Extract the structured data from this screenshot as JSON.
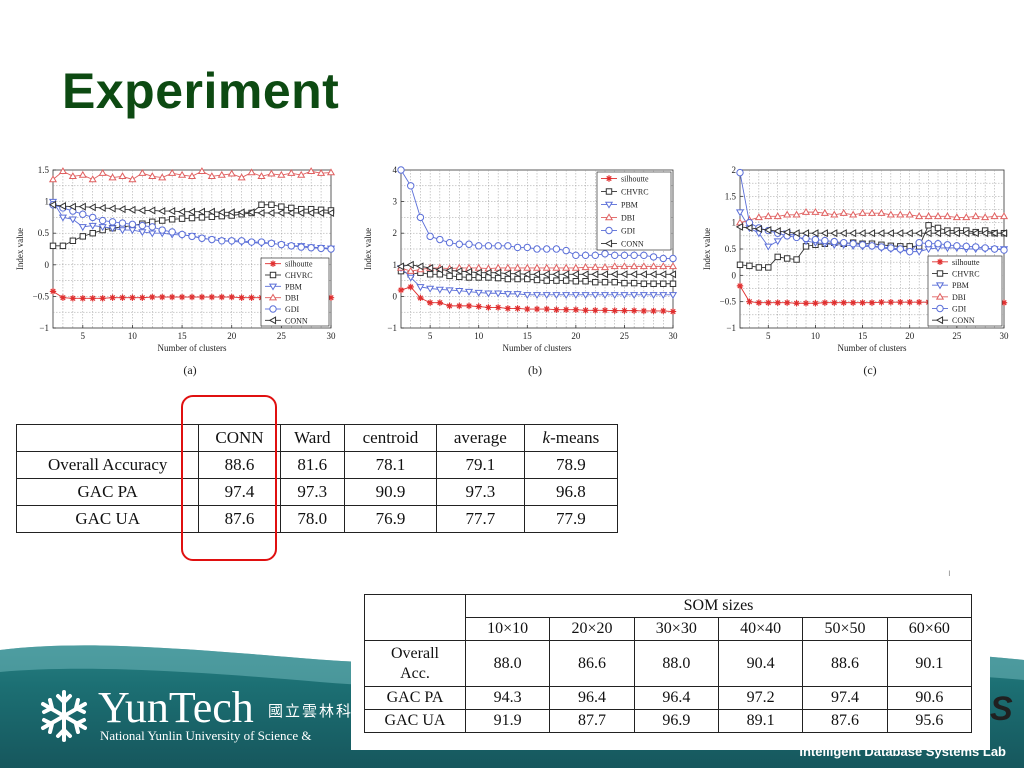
{
  "slide": {
    "title": "Experiment",
    "footer_text": "Intelligent Database Systems Lab",
    "logo": {
      "name": "YunTech",
      "chinese": "國立雲林科",
      "english": "National Yunlin University of Science &"
    },
    "right_glyph": "S"
  },
  "chart_data": [
    {
      "type": "line",
      "caption": "(a)",
      "xlabel": "Number of clusters",
      "ylabel": "Index value",
      "xlim": [
        2,
        30
      ],
      "ylim": [
        -1,
        1.5
      ],
      "xticks": [
        5,
        10,
        15,
        20,
        25,
        30
      ],
      "yticks": [
        -1,
        -0.5,
        0,
        0.5,
        1,
        1.5
      ],
      "ytick_labels": [
        "−1",
        "−0.5",
        "0",
        "0.5",
        "1",
        "1.5"
      ],
      "grid": true,
      "legend_position": "bottom-right",
      "x": [
        2,
        3,
        4,
        5,
        6,
        7,
        8,
        9,
        10,
        11,
        12,
        13,
        14,
        15,
        16,
        17,
        18,
        19,
        20,
        21,
        22,
        23,
        24,
        25,
        26,
        27,
        28,
        29,
        30
      ],
      "series": [
        {
          "name": "silhoutte",
          "color": "#e03030",
          "marker": "star",
          "values": [
            -0.42,
            -0.52,
            -0.53,
            -0.53,
            -0.53,
            -0.53,
            -0.52,
            -0.52,
            -0.52,
            -0.52,
            -0.51,
            -0.51,
            -0.51,
            -0.51,
            -0.51,
            -0.51,
            -0.51,
            -0.51,
            -0.51,
            -0.52,
            -0.52,
            -0.52,
            -0.52,
            -0.52,
            -0.52,
            -0.52,
            -0.52,
            -0.52,
            -0.52
          ]
        },
        {
          "name": "CHVRC",
          "color": "#333333",
          "marker": "square",
          "values": [
            0.3,
            0.3,
            0.38,
            0.45,
            0.5,
            0.55,
            0.58,
            0.6,
            0.62,
            0.65,
            0.68,
            0.7,
            0.72,
            0.73,
            0.74,
            0.75,
            0.76,
            0.77,
            0.78,
            0.8,
            0.82,
            0.95,
            0.95,
            0.92,
            0.9,
            0.88,
            0.88,
            0.87,
            0.86
          ]
        },
        {
          "name": "PBM",
          "color": "#5b6fd8",
          "marker": "tri-down",
          "values": [
            1.0,
            0.75,
            0.72,
            0.6,
            0.62,
            0.6,
            0.58,
            0.55,
            0.55,
            0.52,
            0.5,
            0.5,
            0.48,
            0.47,
            0.46,
            0.42,
            0.4,
            0.38,
            0.37,
            0.36,
            0.35,
            0.34,
            0.34,
            0.32,
            0.3,
            0.3,
            0.28,
            0.27,
            0.26
          ]
        },
        {
          "name": "DBI",
          "color": "#e06060",
          "marker": "tri-up",
          "values": [
            1.35,
            1.48,
            1.4,
            1.42,
            1.35,
            1.45,
            1.38,
            1.4,
            1.35,
            1.45,
            1.4,
            1.38,
            1.45,
            1.42,
            1.4,
            1.48,
            1.4,
            1.42,
            1.44,
            1.38,
            1.46,
            1.4,
            1.44,
            1.42,
            1.45,
            1.42,
            1.48,
            1.45,
            1.46
          ]
        },
        {
          "name": "GDI",
          "color": "#5b6fd8",
          "marker": "circle",
          "values": [
            0.95,
            0.9,
            0.85,
            0.8,
            0.75,
            0.7,
            0.68,
            0.66,
            0.64,
            0.62,
            0.6,
            0.55,
            0.52,
            0.48,
            0.45,
            0.42,
            0.4,
            0.38,
            0.38,
            0.38,
            0.36,
            0.36,
            0.34,
            0.32,
            0.3,
            0.28,
            0.27,
            0.26,
            0.25
          ]
        },
        {
          "name": "CONN",
          "color": "#333333",
          "marker": "tri-left",
          "values": [
            0.95,
            0.93,
            0.92,
            0.92,
            0.91,
            0.9,
            0.89,
            0.88,
            0.87,
            0.86,
            0.86,
            0.85,
            0.85,
            0.84,
            0.84,
            0.84,
            0.84,
            0.83,
            0.83,
            0.83,
            0.83,
            0.82,
            0.82,
            0.82,
            0.82,
            0.82,
            0.82,
            0.82,
            0.82
          ]
        }
      ]
    },
    {
      "type": "line",
      "caption": "(b)",
      "xlabel": "Number of clusters",
      "ylabel": "Index value",
      "xlim": [
        2,
        30
      ],
      "ylim": [
        -1,
        4
      ],
      "xticks": [
        5,
        10,
        15,
        20,
        25,
        30
      ],
      "yticks": [
        -1,
        0,
        1,
        2,
        3,
        4
      ],
      "ytick_labels": [
        "−1",
        "0",
        "1",
        "2",
        "3",
        "4"
      ],
      "grid": true,
      "legend_position": "top-right",
      "x": [
        2,
        3,
        4,
        5,
        6,
        7,
        8,
        9,
        10,
        11,
        12,
        13,
        14,
        15,
        16,
        17,
        18,
        19,
        20,
        21,
        22,
        23,
        24,
        25,
        26,
        27,
        28,
        29,
        30
      ],
      "series": [
        {
          "name": "silhoutte",
          "color": "#e03030",
          "marker": "star",
          "values": [
            0.2,
            0.3,
            -0.05,
            -0.2,
            -0.2,
            -0.3,
            -0.3,
            -0.3,
            -0.32,
            -0.35,
            -0.35,
            -0.38,
            -0.38,
            -0.4,
            -0.4,
            -0.4,
            -0.42,
            -0.42,
            -0.42,
            -0.44,
            -0.44,
            -0.44,
            -0.45,
            -0.45,
            -0.45,
            -0.46,
            -0.46,
            -0.46,
            -0.48
          ]
        },
        {
          "name": "CHVRC",
          "color": "#333333",
          "marker": "square",
          "values": [
            0.8,
            0.7,
            0.75,
            0.7,
            0.7,
            0.65,
            0.62,
            0.6,
            0.6,
            0.6,
            0.58,
            0.55,
            0.55,
            0.55,
            0.52,
            0.5,
            0.5,
            0.5,
            0.48,
            0.48,
            0.45,
            0.45,
            0.45,
            0.42,
            0.42,
            0.4,
            0.4,
            0.4,
            0.4
          ]
        },
        {
          "name": "PBM",
          "color": "#5b6fd8",
          "marker": "tri-down",
          "values": [
            0.9,
            0.6,
            0.3,
            0.25,
            0.22,
            0.2,
            0.18,
            0.15,
            0.12,
            0.1,
            0.1,
            0.08,
            0.08,
            0.05,
            0.05,
            0.05,
            0.05,
            0.05,
            0.05,
            0.05,
            0.05,
            0.05,
            0.05,
            0.05,
            0.05,
            0.05,
            0.05,
            0.05,
            0.05
          ]
        },
        {
          "name": "DBI",
          "color": "#e06060",
          "marker": "tri-up",
          "values": [
            0.9,
            0.8,
            0.85,
            0.9,
            0.9,
            0.88,
            0.9,
            0.9,
            0.9,
            0.88,
            0.9,
            0.9,
            0.9,
            0.9,
            0.9,
            0.9,
            0.9,
            0.9,
            0.9,
            0.92,
            0.92,
            0.92,
            0.95,
            0.95,
            0.95,
            0.95,
            0.95,
            0.95,
            0.95
          ]
        },
        {
          "name": "GDI",
          "color": "#5b6fd8",
          "marker": "circle",
          "values": [
            4.2,
            3.5,
            2.5,
            1.9,
            1.8,
            1.7,
            1.65,
            1.65,
            1.6,
            1.6,
            1.6,
            1.6,
            1.55,
            1.55,
            1.5,
            1.5,
            1.5,
            1.45,
            1.3,
            1.3,
            1.3,
            1.35,
            1.3,
            1.3,
            1.3,
            1.3,
            1.25,
            1.2,
            1.2
          ]
        },
        {
          "name": "CONN",
          "color": "#333333",
          "marker": "tri-left",
          "values": [
            0.95,
            1.0,
            0.95,
            0.9,
            0.85,
            0.82,
            0.8,
            0.78,
            0.75,
            0.75,
            0.75,
            0.72,
            0.72,
            0.7,
            0.7,
            0.7,
            0.7,
            0.7,
            0.7,
            0.7,
            0.7,
            0.7,
            0.7,
            0.7,
            0.7,
            0.7,
            0.7,
            0.7,
            0.7
          ]
        }
      ]
    },
    {
      "type": "line",
      "caption": "(c)",
      "xlabel": "Number of clusters",
      "ylabel": "Index value",
      "xlim": [
        2,
        30
      ],
      "ylim": [
        -1,
        2
      ],
      "xticks": [
        5,
        10,
        15,
        20,
        25,
        30
      ],
      "yticks": [
        -1,
        -0.5,
        0,
        0.5,
        1,
        1.5,
        2
      ],
      "ytick_labels": [
        "−1",
        "−0.5",
        "0",
        "0.5",
        "1",
        "1.5",
        "2"
      ],
      "grid": true,
      "legend_position": "bottom-right",
      "x": [
        2,
        3,
        4,
        5,
        6,
        7,
        8,
        9,
        10,
        11,
        12,
        13,
        14,
        15,
        16,
        17,
        18,
        19,
        20,
        21,
        22,
        23,
        24,
        25,
        26,
        27,
        28,
        29,
        30
      ],
      "series": [
        {
          "name": "silhoutte",
          "color": "#e03030",
          "marker": "star",
          "values": [
            -0.2,
            -0.5,
            -0.52,
            -0.52,
            -0.52,
            -0.52,
            -0.53,
            -0.53,
            -0.53,
            -0.52,
            -0.52,
            -0.52,
            -0.52,
            -0.52,
            -0.52,
            -0.51,
            -0.51,
            -0.51,
            -0.51,
            -0.51,
            -0.51,
            -0.51,
            -0.51,
            -0.51,
            -0.51,
            -0.51,
            -0.51,
            -0.51,
            -0.52
          ]
        },
        {
          "name": "CHVRC",
          "color": "#333333",
          "marker": "square",
          "values": [
            0.2,
            0.18,
            0.15,
            0.15,
            0.35,
            0.32,
            0.3,
            0.55,
            0.58,
            0.6,
            0.62,
            0.6,
            0.62,
            0.6,
            0.6,
            0.58,
            0.56,
            0.55,
            0.55,
            0.55,
            0.95,
            0.9,
            0.85,
            0.85,
            0.85,
            0.82,
            0.85,
            0.8,
            0.8
          ]
        },
        {
          "name": "PBM",
          "color": "#5b6fd8",
          "marker": "tri-down",
          "values": [
            1.2,
            0.9,
            0.8,
            0.55,
            0.65,
            0.8,
            0.75,
            0.65,
            0.62,
            0.6,
            0.58,
            0.58,
            0.56,
            0.55,
            0.55,
            0.52,
            0.5,
            0.48,
            0.45,
            0.45,
            0.5,
            0.52,
            0.52,
            0.52,
            0.5,
            0.5,
            0.5,
            0.5,
            0.5
          ]
        },
        {
          "name": "DBI",
          "color": "#e06060",
          "marker": "tri-up",
          "values": [
            1.0,
            1.05,
            1.1,
            1.12,
            1.12,
            1.15,
            1.15,
            1.2,
            1.2,
            1.18,
            1.15,
            1.18,
            1.15,
            1.18,
            1.18,
            1.18,
            1.15,
            1.15,
            1.15,
            1.12,
            1.12,
            1.12,
            1.12,
            1.1,
            1.1,
            1.12,
            1.1,
            1.12,
            1.12
          ]
        },
        {
          "name": "GDI",
          "color": "#5b6fd8",
          "marker": "circle",
          "values": [
            1.95,
            1.0,
            0.9,
            0.85,
            0.8,
            0.75,
            0.72,
            0.7,
            0.68,
            0.66,
            0.64,
            0.62,
            0.6,
            0.58,
            0.56,
            0.54,
            0.52,
            0.5,
            0.45,
            0.62,
            0.6,
            0.6,
            0.58,
            0.56,
            0.55,
            0.54,
            0.52,
            0.5,
            0.48
          ]
        },
        {
          "name": "CONN",
          "color": "#333333",
          "marker": "tri-left",
          "values": [
            0.92,
            0.9,
            0.88,
            0.86,
            0.84,
            0.82,
            0.8,
            0.8,
            0.8,
            0.8,
            0.8,
            0.8,
            0.8,
            0.8,
            0.8,
            0.8,
            0.8,
            0.8,
            0.8,
            0.8,
            0.8,
            0.8,
            0.8,
            0.8,
            0.8,
            0.8,
            0.8,
            0.8,
            0.8
          ]
        }
      ]
    }
  ],
  "table1": {
    "header": [
      "",
      "CONN",
      "Ward",
      "centroid",
      "average",
      "k-means"
    ],
    "rows": [
      [
        "Overall Accuracy",
        "88.6",
        "81.6",
        "78.1",
        "79.1",
        "78.9"
      ],
      [
        "GAC PA",
        "97.4",
        "97.3",
        "90.9",
        "97.3",
        "96.8"
      ],
      [
        "GAC UA",
        "87.6",
        "78.0",
        "76.9",
        "77.7",
        "77.9"
      ]
    ]
  },
  "table2": {
    "group_header": "SOM sizes",
    "sizes": [
      "10×10",
      "20×20",
      "30×30",
      "40×40",
      "50×50",
      "60×60"
    ],
    "rows": [
      [
        "Overall Acc.",
        "88.0",
        "86.6",
        "88.0",
        "90.4",
        "88.6",
        "90.1"
      ],
      [
        "GAC PA",
        "94.3",
        "96.4",
        "96.4",
        "97.2",
        "97.4",
        "90.6"
      ],
      [
        "GAC UA",
        "91.9",
        "87.7",
        "96.9",
        "89.1",
        "87.6",
        "95.6"
      ]
    ]
  }
}
